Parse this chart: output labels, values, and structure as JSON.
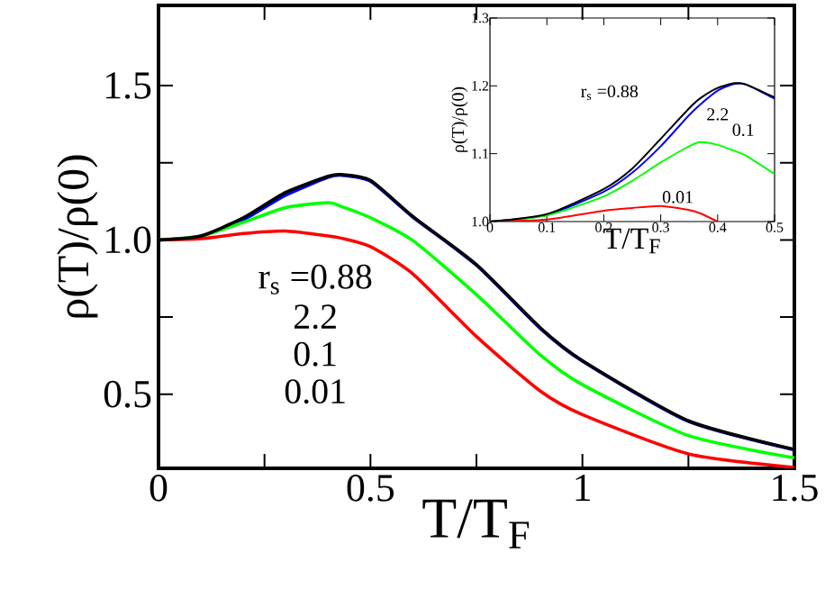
{
  "chart_data": [
    {
      "type": "line",
      "xlabel": "T/T$_{F}$",
      "ylabel": "ρ(T)/ρ(0)",
      "x": [
        0,
        0.1,
        0.2,
        0.3,
        0.4,
        0.43,
        0.5,
        0.6,
        0.75,
        0.9,
        1.0,
        1.25,
        1.5
      ],
      "series": [
        {
          "color": "#0000ff",
          "values": [
            1.0,
            1.012,
            1.065,
            1.145,
            1.203,
            1.21,
            1.19,
            1.074,
            0.918,
            0.714,
            0.607,
            0.412,
            0.32
          ]
        },
        {
          "color": "#00ff00",
          "values": [
            1.0,
            1.013,
            1.057,
            1.105,
            1.121,
            1.109,
            1.072,
            0.998,
            0.823,
            0.628,
            0.531,
            0.366,
            0.294
          ]
        },
        {
          "color": "#ff0000",
          "values": [
            1.0,
            1.004,
            1.021,
            1.029,
            1.013,
            1.006,
            0.978,
            0.89,
            0.687,
            0.511,
            0.434,
            0.307,
            0.263
          ]
        },
        {
          "color": "#000000",
          "values": [
            1.0,
            1.013,
            1.072,
            1.154,
            1.206,
            1.212,
            1.193,
            1.076,
            0.92,
            0.716,
            0.609,
            0.414,
            0.321
          ]
        }
      ],
      "xlim": [
        0,
        1.5
      ],
      "ylim": [
        0.26,
        1.76
      ],
      "xticks": [
        0,
        {
          "value": 0.25,
          "label": null
        },
        {
          "value": 0.5,
          "label": "0.5"
        },
        {
          "value": 0.75,
          "label": null
        },
        1,
        {
          "value": 1.25,
          "label": null
        },
        1.5
      ],
      "yticks": [
        {
          "value": 0.5,
          "label": "0.5"
        },
        {
          "value": 0.75,
          "label": null
        },
        {
          "value": 1.0,
          "label": "1.0"
        },
        {
          "value": 1.25,
          "label": null
        },
        {
          "value": 1.5,
          "label": "1.5"
        }
      ],
      "annotations": [
        "r$_{s}$ =0.88",
        "2.2",
        "0.1",
        "0.01"
      ],
      "grid": false,
      "marker": "none",
      "line_style": "solid"
    },
    {
      "type": "line",
      "xlabel": "T/T$_{F}$",
      "ylabel": "ρ(T)/ρ(0)",
      "x": [
        0,
        0.1,
        0.2,
        0.25,
        0.3,
        0.35,
        0.37,
        0.4,
        0.43,
        0.45,
        0.5
      ],
      "series": [
        {
          "name": "2.2",
          "color": "#0000ff",
          "values": [
            1.0,
            1.01,
            1.044,
            1.072,
            1.111,
            1.157,
            1.173,
            1.193,
            1.203,
            1.202,
            1.181
          ]
        },
        {
          "name": "0.1",
          "color": "#00ff00",
          "values": [
            1.0,
            1.009,
            1.037,
            1.06,
            1.087,
            1.111,
            1.117,
            1.113,
            1.104,
            1.097,
            1.07
          ]
        },
        {
          "name": "0.01",
          "color": "#ff0000",
          "values": [
            1.0,
            1.003,
            1.016,
            1.02,
            1.023,
            1.017,
            1.012,
            1.0,
            null,
            null,
            null
          ]
        },
        {
          "name": "r$_{s}$ =0.88",
          "color": "#000000",
          "values": [
            1.0,
            1.011,
            1.048,
            1.078,
            1.122,
            1.167,
            1.182,
            1.197,
            1.204,
            1.202,
            1.183
          ]
        }
      ],
      "xlim": [
        0,
        0.5
      ],
      "ylim": [
        1.0,
        1.3
      ],
      "xticks": [
        0,
        0.1,
        0.2,
        0.3,
        0.4,
        0.5
      ],
      "yticks": [
        {
          "value": 1.0,
          "label": "1.0"
        },
        {
          "value": 1.1,
          "label": "1.1"
        },
        {
          "value": 1.2,
          "label": "1.2"
        },
        {
          "value": 1.3,
          "label": "1.3"
        }
      ],
      "grid": false,
      "marker": "none",
      "line_style": "solid"
    }
  ]
}
